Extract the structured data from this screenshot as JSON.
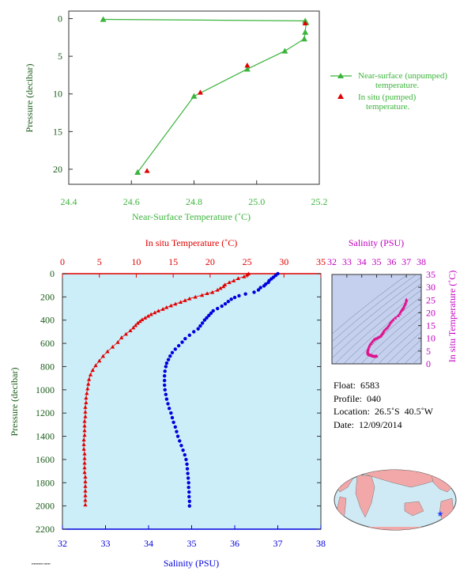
{
  "chart_data": [
    {
      "type": "line",
      "xlabel": "Near-Surface Temperature (˚C)",
      "ylabel": "Pressure (decibar)",
      "xlim": [
        24.4,
        25.2
      ],
      "ylim": [
        22,
        -1
      ],
      "xticks": [
        "24.4",
        "24.6",
        "24.8",
        "25.0",
        "25.2"
      ],
      "yticks": [
        "0",
        "5",
        "10",
        "15",
        "20"
      ],
      "colors": {
        "near_surface": "#3cb43c",
        "in_situ": "#e00000",
        "axis_text": "#3cb43c",
        "frame": "#333333"
      },
      "series": [
        {
          "name": "Near-surface (unpumped) temperature.",
          "points": [
            [
              24.51,
              0.1
            ],
            [
              25.155,
              0.3
            ],
            [
              25.158,
              0.5
            ],
            [
              25.155,
              1.8
            ],
            [
              25.152,
              2.7
            ],
            [
              25.09,
              4.3
            ],
            [
              24.97,
              6.7
            ],
            [
              24.8,
              10.3
            ],
            [
              24.62,
              20.4
            ]
          ]
        },
        {
          "name": "In situ (pumped) temperature.",
          "points": [
            [
              25.155,
              0.6
            ],
            [
              24.97,
              6.2
            ],
            [
              24.82,
              9.8
            ],
            [
              24.65,
              20.2
            ]
          ]
        }
      ]
    },
    {
      "type": "line",
      "ylabel": "Pressure (decibar)",
      "x_top_label": "In situ Temperature (˚C)",
      "x_bottom_label": "Salinity (PSU)",
      "temperature_lim": [
        0,
        35
      ],
      "salinity_lim": [
        32,
        38
      ],
      "pressure_lim": [
        2200,
        0
      ],
      "temperature_ticks": [
        "0",
        "5",
        "10",
        "15",
        "20",
        "25",
        "30",
        "35"
      ],
      "salinity_ticks": [
        "32",
        "33",
        "34",
        "35",
        "36",
        "37",
        "38"
      ],
      "pressure_ticks": [
        "0",
        "200",
        "400",
        "600",
        "800",
        "1000",
        "1200",
        "1400",
        "1600",
        "1800",
        "2000",
        "2200"
      ],
      "colors": {
        "temperature": "#e00000",
        "salinity": "#0000dd",
        "background": "#cceef8",
        "left_axis_text": "#1a5c1a"
      },
      "series": [
        {
          "name": "In situ Temperature",
          "points": [
            [
              25.2,
              0
            ],
            [
              25.0,
              10
            ],
            [
              24.6,
              25
            ],
            [
              23.8,
              40
            ],
            [
              23.2,
              60
            ],
            [
              22.6,
              75
            ],
            [
              22.0,
              95
            ],
            [
              21.8,
              110
            ],
            [
              21.4,
              125
            ],
            [
              21.0,
              140
            ],
            [
              20.3,
              160
            ],
            [
              19.6,
              170
            ],
            [
              18.9,
              185
            ],
            [
              18.0,
              200
            ],
            [
              17.2,
              215
            ],
            [
              16.6,
              230
            ],
            [
              16.0,
              245
            ],
            [
              15.3,
              260
            ],
            [
              14.7,
              275
            ],
            [
              14.1,
              290
            ],
            [
              13.6,
              305
            ],
            [
              13.0,
              320
            ],
            [
              12.5,
              335
            ],
            [
              12.0,
              350
            ],
            [
              11.6,
              365
            ],
            [
              11.2,
              380
            ],
            [
              10.8,
              395
            ],
            [
              10.5,
              410
            ],
            [
              10.2,
              425
            ],
            [
              9.9,
              445
            ],
            [
              9.6,
              465
            ],
            [
              9.2,
              490
            ],
            [
              8.6,
              520
            ],
            [
              8.0,
              550
            ],
            [
              7.5,
              590
            ],
            [
              6.8,
              630
            ],
            [
              6.1,
              670
            ],
            [
              5.5,
              710
            ],
            [
              5.0,
              750
            ],
            [
              4.5,
              790
            ],
            [
              4.1,
              830
            ],
            [
              3.8,
              870
            ],
            [
              3.6,
              910
            ],
            [
              3.5,
              950
            ],
            [
              3.4,
              990
            ],
            [
              3.3,
              1030
            ],
            [
              3.2,
              1070
            ],
            [
              3.2,
              1110
            ],
            [
              3.1,
              1150
            ],
            [
              3.1,
              1190
            ],
            [
              3.1,
              1230
            ],
            [
              3.0,
              1270
            ],
            [
              3.0,
              1310
            ],
            [
              3.0,
              1350
            ],
            [
              3.0,
              1390
            ],
            [
              2.9,
              1430
            ],
            [
              2.9,
              1470
            ],
            [
              2.9,
              1510
            ],
            [
              3.0,
              1550
            ],
            [
              3.0,
              1590
            ],
            [
              3.0,
              1630
            ],
            [
              3.0,
              1670
            ],
            [
              3.0,
              1710
            ],
            [
              3.1,
              1750
            ],
            [
              3.1,
              1790
            ],
            [
              3.1,
              1830
            ],
            [
              3.1,
              1870
            ],
            [
              3.1,
              1910
            ],
            [
              3.1,
              1950
            ],
            [
              3.1,
              1990
            ]
          ]
        },
        {
          "name": "Salinity",
          "points": [
            [
              37.0,
              0
            ],
            [
              36.95,
              15
            ],
            [
              36.9,
              30
            ],
            [
              36.85,
              45
            ],
            [
              36.8,
              60
            ],
            [
              36.78,
              75
            ],
            [
              36.72,
              90
            ],
            [
              36.68,
              105
            ],
            [
              36.6,
              120
            ],
            [
              36.55,
              140
            ],
            [
              36.45,
              160
            ],
            [
              36.25,
              175
            ],
            [
              36.1,
              190
            ],
            [
              36.0,
              205
            ],
            [
              35.92,
              220
            ],
            [
              35.85,
              240
            ],
            [
              35.78,
              260
            ],
            [
              35.7,
              280
            ],
            [
              35.6,
              300
            ],
            [
              35.5,
              320
            ],
            [
              35.45,
              340
            ],
            [
              35.4,
              360
            ],
            [
              35.35,
              380
            ],
            [
              35.3,
              400
            ],
            [
              35.25,
              425
            ],
            [
              35.2,
              450
            ],
            [
              35.15,
              475
            ],
            [
              35.05,
              500
            ],
            [
              34.95,
              530
            ],
            [
              34.85,
              560
            ],
            [
              34.78,
              590
            ],
            [
              34.7,
              620
            ],
            [
              34.62,
              650
            ],
            [
              34.55,
              680
            ],
            [
              34.5,
              710
            ],
            [
              34.46,
              740
            ],
            [
              34.42,
              770
            ],
            [
              34.4,
              800
            ],
            [
              34.38,
              840
            ],
            [
              34.37,
              880
            ],
            [
              34.37,
              920
            ],
            [
              34.37,
              960
            ],
            [
              34.38,
              1000
            ],
            [
              34.4,
              1040
            ],
            [
              34.42,
              1080
            ],
            [
              34.45,
              1120
            ],
            [
              34.48,
              1160
            ],
            [
              34.52,
              1200
            ],
            [
              34.55,
              1240
            ],
            [
              34.58,
              1280
            ],
            [
              34.62,
              1320
            ],
            [
              34.65,
              1360
            ],
            [
              34.68,
              1400
            ],
            [
              34.72,
              1440
            ],
            [
              34.76,
              1480
            ],
            [
              34.8,
              1520
            ],
            [
              34.84,
              1560
            ],
            [
              34.87,
              1600
            ],
            [
              34.89,
              1640
            ],
            [
              34.9,
              1680
            ],
            [
              34.91,
              1720
            ],
            [
              34.92,
              1760
            ],
            [
              34.93,
              1800
            ],
            [
              34.93,
              1840
            ],
            [
              34.94,
              1880
            ],
            [
              34.94,
              1920
            ],
            [
              34.95,
              1960
            ],
            [
              34.95,
              2000
            ]
          ]
        }
      ]
    },
    {
      "type": "scatter",
      "x_top_label": "Salinity (PSU)",
      "ylabel_right": "In situ Temperature (˚C)",
      "xlim": [
        32,
        38
      ],
      "ylim": [
        0,
        35
      ],
      "xticks": [
        "32",
        "33",
        "34",
        "35",
        "36",
        "37",
        "38"
      ],
      "yticks": [
        "0",
        "5",
        "10",
        "15",
        "20",
        "25",
        "30",
        "35"
      ],
      "colors": {
        "points": "#e0108c",
        "axis_text": "#c000c0",
        "background": "#c4d0ee"
      },
      "series": [
        {
          "name": "T-S",
          "points": [
            [
              35.0,
              3.1
            ],
            [
              34.95,
              3.0
            ],
            [
              34.9,
              3.0
            ],
            [
              34.85,
              2.9
            ],
            [
              34.8,
              3.0
            ],
            [
              34.75,
              3.1
            ],
            [
              34.7,
              3.2
            ],
            [
              34.65,
              3.3
            ],
            [
              34.6,
              3.4
            ],
            [
              34.55,
              3.5
            ],
            [
              34.5,
              3.6
            ],
            [
              34.45,
              3.8
            ],
            [
              34.42,
              4.1
            ],
            [
              34.4,
              4.5
            ],
            [
              34.4,
              5.0
            ],
            [
              34.42,
              5.5
            ],
            [
              34.45,
              6.1
            ],
            [
              34.5,
              6.8
            ],
            [
              34.55,
              7.5
            ],
            [
              34.62,
              8.0
            ],
            [
              34.7,
              8.6
            ],
            [
              34.78,
              9.2
            ],
            [
              34.85,
              9.6
            ],
            [
              34.95,
              9.9
            ],
            [
              35.05,
              10.2
            ],
            [
              35.15,
              10.5
            ],
            [
              35.25,
              10.8
            ],
            [
              35.3,
              11.2
            ],
            [
              35.35,
              11.6
            ],
            [
              35.4,
              12.0
            ],
            [
              35.45,
              12.5
            ],
            [
              35.5,
              13.0
            ],
            [
              35.6,
              13.6
            ],
            [
              35.7,
              14.1
            ],
            [
              35.78,
              14.7
            ],
            [
              35.85,
              15.3
            ],
            [
              35.92,
              16.0
            ],
            [
              36.0,
              16.6
            ],
            [
              36.1,
              17.2
            ],
            [
              36.25,
              18.0
            ],
            [
              36.45,
              18.9
            ],
            [
              36.55,
              19.6
            ],
            [
              36.6,
              20.3
            ],
            [
              36.68,
              21.0
            ],
            [
              36.72,
              21.4
            ],
            [
              36.78,
              21.8
            ],
            [
              36.8,
              22.0
            ],
            [
              36.85,
              22.6
            ],
            [
              36.9,
              23.2
            ],
            [
              36.95,
              23.8
            ],
            [
              37.0,
              24.6
            ],
            [
              37.0,
              25.2
            ]
          ]
        }
      ]
    }
  ],
  "float_info": {
    "float": "Float:  6583",
    "profile": "Profile:  040",
    "location": "Location:  26.5˚S  40.5˚W",
    "date": "Date:  12/09/2014"
  },
  "map": {
    "marker_label": "★",
    "colors": {
      "ocean": "#cfeaf5",
      "land": "#f2a8a8",
      "marker": "#1c3cff"
    }
  }
}
